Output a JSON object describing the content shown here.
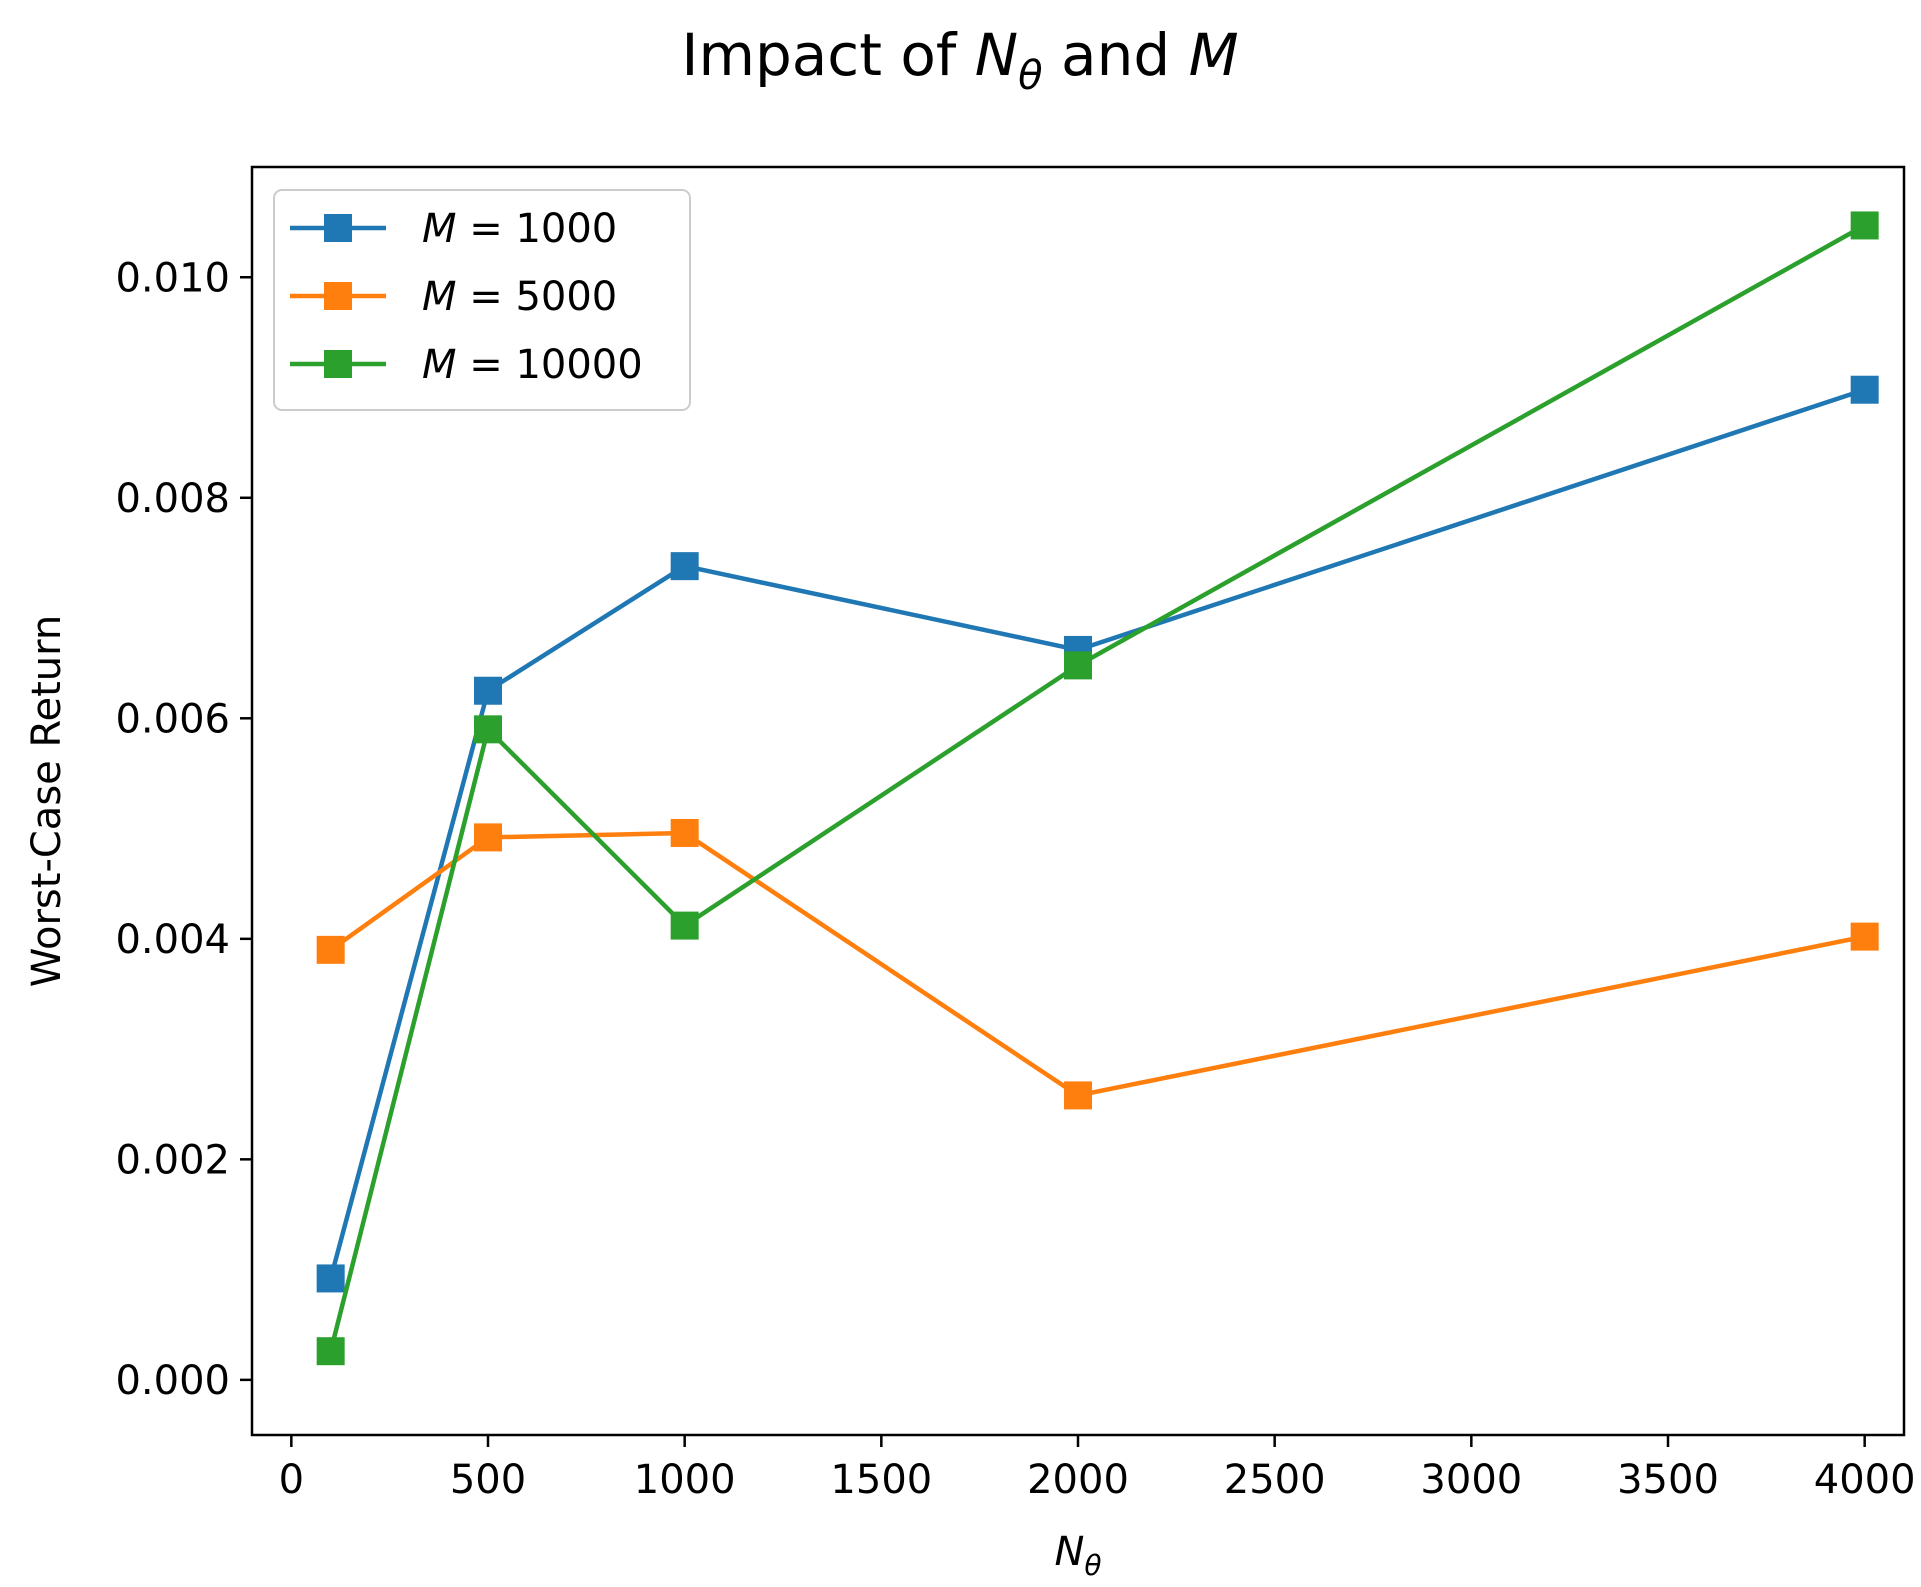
{
  "chart_data": {
    "type": "line",
    "title": {
      "prefix": "Impact of ",
      "sym1": "N",
      "sym1_sub": "θ",
      "middle": " and ",
      "sym2": "M"
    },
    "xlabel": {
      "sym": "N",
      "sub": "θ"
    },
    "ylabel": "Worst-Case Return",
    "xlim": [
      -100,
      4100
    ],
    "ylim": [
      -0.0005,
      0.011
    ],
    "xticks": [
      0,
      500,
      1000,
      1500,
      2000,
      2500,
      3000,
      3500,
      4000
    ],
    "xtick_labels": [
      "0",
      "500",
      "1000",
      "1500",
      "2000",
      "2500",
      "3000",
      "3500",
      "4000"
    ],
    "yticks": [
      0,
      0.002,
      0.004,
      0.006,
      0.008,
      0.01
    ],
    "ytick_labels": [
      "0.000",
      "0.002",
      "0.004",
      "0.006",
      "0.008",
      "0.010"
    ],
    "x": [
      100,
      500,
      1000,
      2000,
      4000
    ],
    "legend_position": "upper-left",
    "series": [
      {
        "name_sym": "M",
        "name_rest": " = 1000",
        "color": "#1f77b4",
        "values": [
          0.00092,
          0.00625,
          0.00738,
          0.00662,
          0.00898
        ]
      },
      {
        "name_sym": "M",
        "name_rest": " = 5000",
        "color": "#ff7f0e",
        "values": [
          0.0039,
          0.00492,
          0.00496,
          0.00258,
          0.00402
        ]
      },
      {
        "name_sym": "M",
        "name_rest": " = 10000",
        "color": "#2ca02c",
        "values": [
          0.00026,
          0.0059,
          0.00412,
          0.00648,
          0.01047
        ]
      }
    ]
  }
}
